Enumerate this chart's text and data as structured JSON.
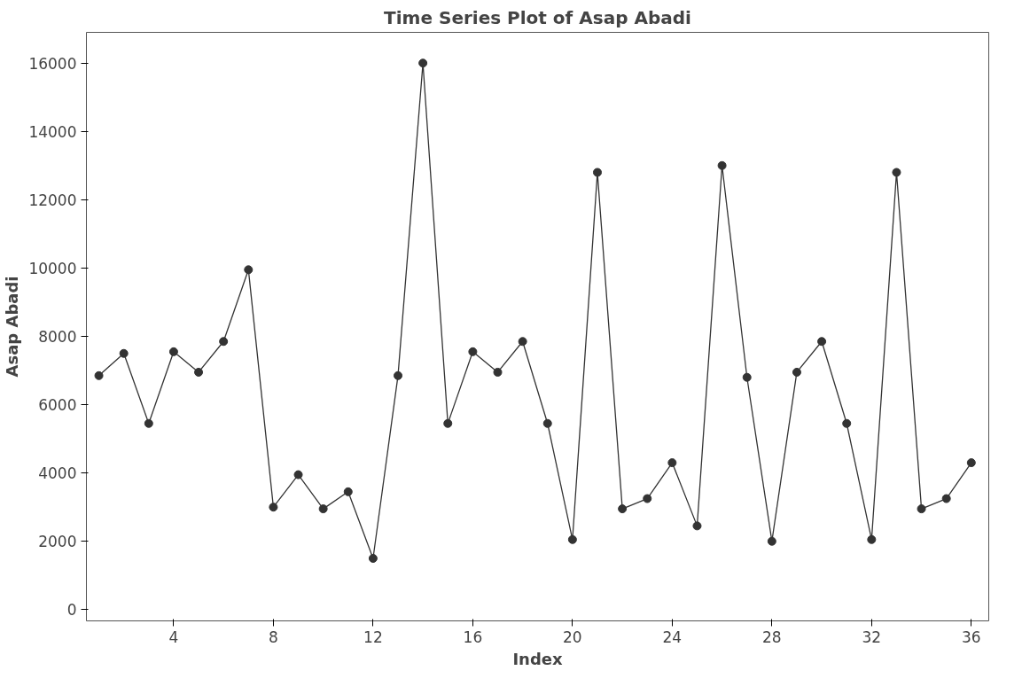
{
  "chart_data": {
    "type": "line",
    "title": "Time Series Plot of Asap Abadi",
    "xlabel": "Index",
    "ylabel": "Asap Abadi",
    "x": [
      1,
      2,
      3,
      4,
      5,
      6,
      7,
      8,
      9,
      10,
      11,
      12,
      13,
      14,
      15,
      16,
      17,
      18,
      19,
      20,
      21,
      22,
      23,
      24,
      25,
      26,
      27,
      28,
      29,
      30,
      31,
      32,
      33,
      34,
      35,
      36
    ],
    "series": [
      {
        "color": "#333333",
        "values": [
          6850,
          7500,
          5450,
          7550,
          6950,
          7850,
          9950,
          3000,
          3950,
          2950,
          3450,
          1500,
          6850,
          16000,
          5450,
          7550,
          6950,
          7850,
          5450,
          2050,
          12800,
          2950,
          3250,
          4300,
          2450,
          13000,
          6800,
          2000,
          6950,
          7850,
          5450,
          2050,
          12800,
          2950,
          3250,
          4300
        ]
      }
    ],
    "xlim": [
      0.5,
      36.7
    ],
    "ylim": [
      -330,
      16900
    ],
    "xticks": [
      4,
      8,
      12,
      16,
      20,
      24,
      28,
      32,
      36
    ],
    "yticks": [
      0,
      2000,
      4000,
      6000,
      8000,
      10000,
      12000,
      14000,
      16000
    ],
    "grid": false,
    "marker": "circle",
    "line_style": "solid"
  }
}
